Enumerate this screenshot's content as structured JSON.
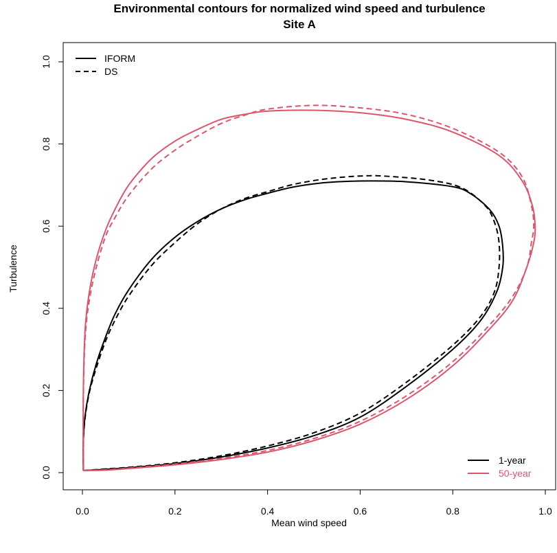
{
  "chart_data": {
    "type": "line",
    "title": "Environmental contours for normalized wind speed and turbulence",
    "subtitle": "Site A",
    "xlabel": "Mean wind speed",
    "ylabel": "Turbulence",
    "xlim": [
      0.0,
      1.0
    ],
    "ylim": [
      0.0,
      1.0
    ],
    "x_ticks": [
      "0.0",
      "0.2",
      "0.4",
      "0.6",
      "0.8",
      "1.0"
    ],
    "y_ticks": [
      "0.0",
      "0.2",
      "0.4",
      "0.6",
      "0.8",
      "1.0"
    ],
    "grid": false,
    "colors": {
      "1-year": "#000000",
      "50-year": "#DF536B"
    },
    "legend_linetype": {
      "position": "top-left",
      "entries": [
        {
          "label": "IFORM",
          "dash": "solid"
        },
        {
          "label": "DS",
          "dash": "dashed"
        }
      ]
    },
    "legend_period": {
      "position": "bottom-right",
      "entries": [
        {
          "label": "1-year",
          "color": "#000000"
        },
        {
          "label": "50-year",
          "color": "#DF536B"
        }
      ]
    },
    "series": [
      {
        "method": "IFORM",
        "period": "1-year",
        "color": "#000000",
        "dash": "solid",
        "points": [
          [
            0.002,
            0.005
          ],
          [
            0.05,
            0.008
          ],
          [
            0.1,
            0.012
          ],
          [
            0.2,
            0.022
          ],
          [
            0.3,
            0.038
          ],
          [
            0.4,
            0.06
          ],
          [
            0.5,
            0.09
          ],
          [
            0.6,
            0.135
          ],
          [
            0.7,
            0.21
          ],
          [
            0.8,
            0.3
          ],
          [
            0.86,
            0.37
          ],
          [
            0.895,
            0.44
          ],
          [
            0.908,
            0.5
          ],
          [
            0.908,
            0.55
          ],
          [
            0.9,
            0.6
          ],
          [
            0.88,
            0.64
          ],
          [
            0.84,
            0.678
          ],
          [
            0.8,
            0.696
          ],
          [
            0.7,
            0.708
          ],
          [
            0.62,
            0.71
          ],
          [
            0.55,
            0.708
          ],
          [
            0.5,
            0.703
          ],
          [
            0.45,
            0.694
          ],
          [
            0.4,
            0.68
          ],
          [
            0.35,
            0.664
          ],
          [
            0.3,
            0.642
          ],
          [
            0.25,
            0.612
          ],
          [
            0.2,
            0.573
          ],
          [
            0.15,
            0.52
          ],
          [
            0.1,
            0.445
          ],
          [
            0.07,
            0.385
          ],
          [
            0.05,
            0.33
          ],
          [
            0.03,
            0.265
          ],
          [
            0.015,
            0.2
          ],
          [
            0.006,
            0.14
          ],
          [
            0.002,
            0.08
          ],
          [
            0.002,
            0.005
          ]
        ]
      },
      {
        "method": "DS",
        "period": "1-year",
        "color": "#000000",
        "dash": "dashed",
        "points": [
          [
            0.002,
            0.005
          ],
          [
            0.05,
            0.009
          ],
          [
            0.1,
            0.013
          ],
          [
            0.2,
            0.024
          ],
          [
            0.3,
            0.041
          ],
          [
            0.4,
            0.065
          ],
          [
            0.5,
            0.097
          ],
          [
            0.6,
            0.145
          ],
          [
            0.7,
            0.22
          ],
          [
            0.8,
            0.31
          ],
          [
            0.86,
            0.38
          ],
          [
            0.89,
            0.44
          ],
          [
            0.9,
            0.5
          ],
          [
            0.9,
            0.56
          ],
          [
            0.89,
            0.61
          ],
          [
            0.87,
            0.65
          ],
          [
            0.82,
            0.693
          ],
          [
            0.75,
            0.712
          ],
          [
            0.65,
            0.722
          ],
          [
            0.6,
            0.722
          ],
          [
            0.55,
            0.718
          ],
          [
            0.5,
            0.711
          ],
          [
            0.45,
            0.7
          ],
          [
            0.4,
            0.684
          ],
          [
            0.35,
            0.667
          ],
          [
            0.3,
            0.642
          ],
          [
            0.25,
            0.607
          ],
          [
            0.2,
            0.56
          ],
          [
            0.15,
            0.505
          ],
          [
            0.1,
            0.43
          ],
          [
            0.07,
            0.37
          ],
          [
            0.05,
            0.32
          ],
          [
            0.03,
            0.255
          ],
          [
            0.015,
            0.195
          ],
          [
            0.006,
            0.135
          ],
          [
            0.002,
            0.075
          ],
          [
            0.002,
            0.005
          ]
        ]
      },
      {
        "method": "IFORM",
        "period": "50-year",
        "color": "#DF536B",
        "dash": "solid",
        "points": [
          [
            0.002,
            0.005
          ],
          [
            0.05,
            0.006
          ],
          [
            0.1,
            0.01
          ],
          [
            0.2,
            0.019
          ],
          [
            0.3,
            0.032
          ],
          [
            0.4,
            0.05
          ],
          [
            0.5,
            0.078
          ],
          [
            0.6,
            0.118
          ],
          [
            0.7,
            0.178
          ],
          [
            0.8,
            0.26
          ],
          [
            0.88,
            0.35
          ],
          [
            0.93,
            0.42
          ],
          [
            0.96,
            0.5
          ],
          [
            0.975,
            0.56
          ],
          [
            0.978,
            0.6
          ],
          [
            0.972,
            0.65
          ],
          [
            0.95,
            0.71
          ],
          [
            0.9,
            0.772
          ],
          [
            0.8,
            0.829
          ],
          [
            0.7,
            0.86
          ],
          [
            0.6,
            0.876
          ],
          [
            0.5,
            0.882
          ],
          [
            0.4,
            0.88
          ],
          [
            0.35,
            0.872
          ],
          [
            0.3,
            0.86
          ],
          [
            0.25,
            0.836
          ],
          [
            0.2,
            0.807
          ],
          [
            0.15,
            0.765
          ],
          [
            0.1,
            0.7
          ],
          [
            0.07,
            0.64
          ],
          [
            0.05,
            0.59
          ],
          [
            0.03,
            0.52
          ],
          [
            0.015,
            0.44
          ],
          [
            0.006,
            0.35
          ],
          [
            0.002,
            0.2
          ],
          [
            0.002,
            0.005
          ]
        ]
      },
      {
        "method": "DS",
        "period": "50-year",
        "color": "#DF536B",
        "dash": "dashed",
        "points": [
          [
            0.002,
            0.005
          ],
          [
            0.05,
            0.007
          ],
          [
            0.1,
            0.011
          ],
          [
            0.2,
            0.021
          ],
          [
            0.3,
            0.035
          ],
          [
            0.4,
            0.054
          ],
          [
            0.5,
            0.083
          ],
          [
            0.6,
            0.125
          ],
          [
            0.7,
            0.187
          ],
          [
            0.8,
            0.27
          ],
          [
            0.88,
            0.36
          ],
          [
            0.93,
            0.43
          ],
          [
            0.96,
            0.5
          ],
          [
            0.97,
            0.56
          ],
          [
            0.975,
            0.6
          ],
          [
            0.97,
            0.65
          ],
          [
            0.95,
            0.72
          ],
          [
            0.9,
            0.78
          ],
          [
            0.8,
            0.838
          ],
          [
            0.7,
            0.872
          ],
          [
            0.6,
            0.888
          ],
          [
            0.5,
            0.894
          ],
          [
            0.4,
            0.885
          ],
          [
            0.35,
            0.87
          ],
          [
            0.3,
            0.85
          ],
          [
            0.25,
            0.82
          ],
          [
            0.2,
            0.785
          ],
          [
            0.15,
            0.74
          ],
          [
            0.1,
            0.675
          ],
          [
            0.07,
            0.62
          ],
          [
            0.05,
            0.575
          ],
          [
            0.03,
            0.5
          ],
          [
            0.015,
            0.42
          ],
          [
            0.006,
            0.33
          ],
          [
            0.002,
            0.18
          ],
          [
            0.002,
            0.005
          ]
        ]
      }
    ]
  }
}
